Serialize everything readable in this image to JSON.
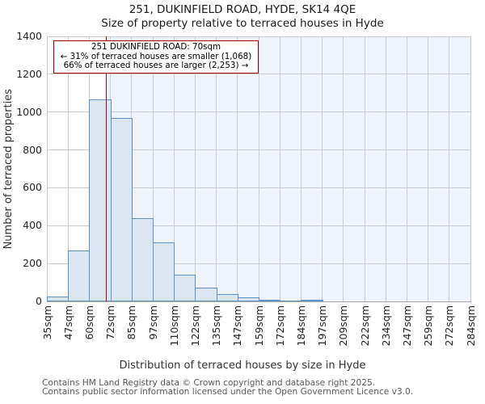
{
  "header": {
    "title": "251, DUKINFIELD ROAD, HYDE, SK14 4QE",
    "subtitle": "Size of property relative to terraced houses in Hyde"
  },
  "annotation": {
    "line1": "251 DUKINFIELD ROAD: 70sqm",
    "line2": "← 31% of terraced houses are smaller (1,068)",
    "line3": "66% of terraced houses are larger (2,253) →"
  },
  "footer": {
    "line1": "Contains HM Land Registry data © Crown copyright and database right 2025.",
    "line2": "Contains public sector information licensed under the Open Government Licence v3.0."
  },
  "chart_data": {
    "type": "bar",
    "title": "251, DUKINFIELD ROAD, HYDE, SK14 4QE",
    "subtitle": "Size of property relative to terraced houses in Hyde",
    "xlabel": "Distribution of terraced houses by size in Hyde",
    "ylabel": "Number of terraced properties",
    "ylim": [
      0,
      1400
    ],
    "yticks": [
      0,
      200,
      400,
      600,
      800,
      1000,
      1200,
      1400
    ],
    "grid": true,
    "bin_edges_sqm": [
      35,
      47,
      60,
      72,
      85,
      97,
      110,
      122,
      135,
      147,
      159,
      172,
      184,
      197,
      209,
      222,
      234,
      247,
      259,
      272,
      284
    ],
    "x_tick_labels": [
      "35sqm",
      "47sqm",
      "60sqm",
      "72sqm",
      "85sqm",
      "97sqm",
      "110sqm",
      "122sqm",
      "135sqm",
      "147sqm",
      "159sqm",
      "172sqm",
      "184sqm",
      "197sqm",
      "209sqm",
      "222sqm",
      "234sqm",
      "247sqm",
      "259sqm",
      "272sqm",
      "284sqm"
    ],
    "values": [
      25,
      270,
      1065,
      970,
      440,
      310,
      140,
      72,
      38,
      20,
      10,
      5,
      10,
      0,
      0,
      0,
      0,
      0,
      0,
      0
    ],
    "marker_sqm": 70,
    "marker_label": "251 DUKINFIELD ROAD: 70sqm",
    "pct_smaller": "31%",
    "count_smaller": "1,068",
    "pct_larger": "66%",
    "count_larger": "2,253",
    "colors": {
      "bar_fill": "#dce6f3",
      "bar_edge": "#6191c9",
      "marker_line": "#c00000",
      "annotation_border": "#aa0000",
      "shade": "#eff3fb",
      "gridline": "#cccccc",
      "axis_line": "#a8a8a8",
      "text": "#262626",
      "footer_text": "#595959"
    }
  }
}
